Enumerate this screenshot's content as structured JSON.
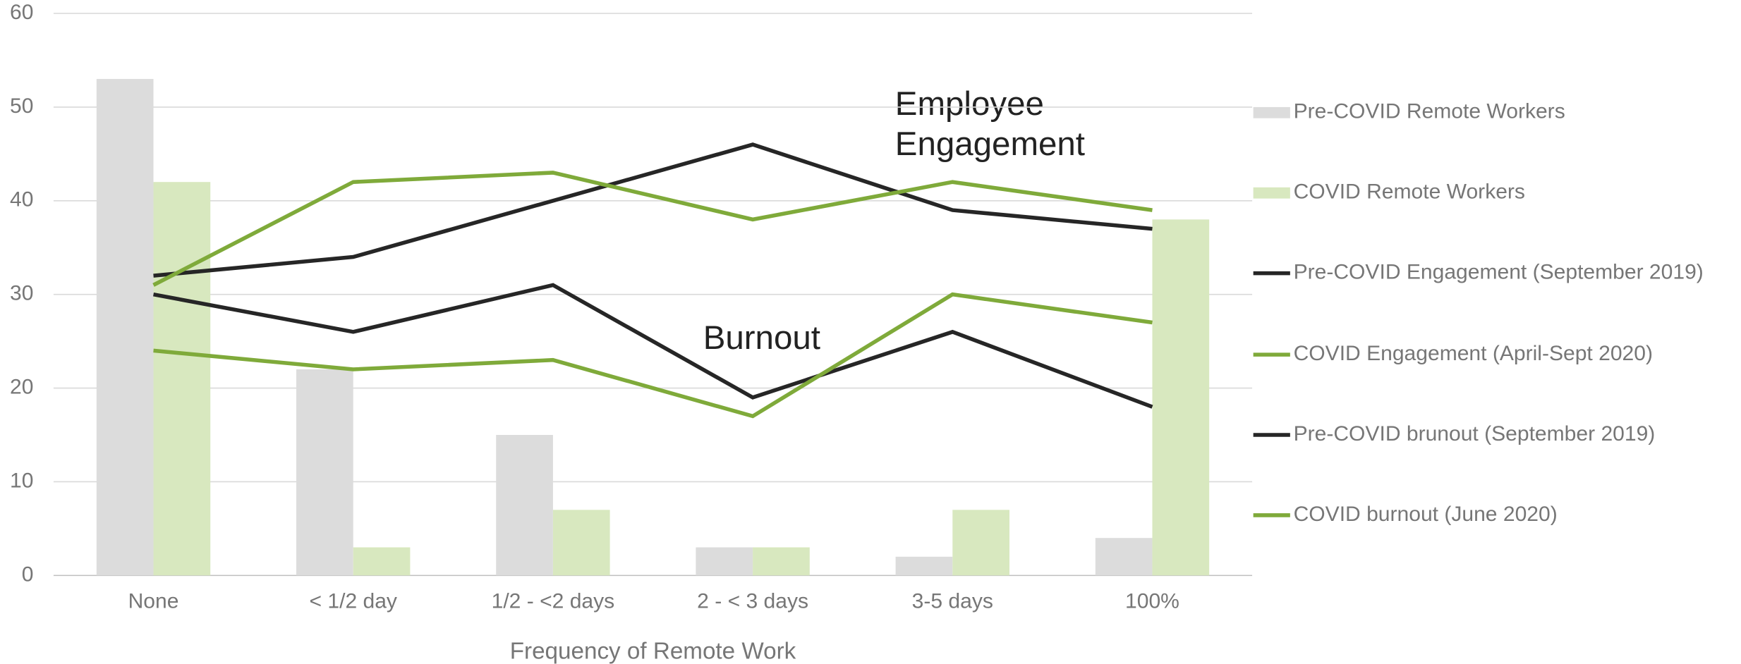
{
  "chart_data": {
    "type": "bar_line",
    "x_label": "Frequency of Remote Work",
    "categories": [
      "None",
      "< 1/2 day",
      "1/2 -  <2 days",
      "2 - < 3 days",
      "3-5 days",
      "100%"
    ],
    "series": [
      {
        "name": "Pre-COVID Remote Workers",
        "kind": "bar",
        "color": "#dcdcdc",
        "values": [
          53,
          22,
          15,
          3,
          2,
          4
        ]
      },
      {
        "name": "COVID Remote Workers",
        "kind": "bar",
        "color": "#d8e8bf",
        "values": [
          42,
          3,
          7,
          3,
          7,
          38
        ]
      },
      {
        "name": "Pre-COVID Engagement (September 2019)",
        "kind": "line",
        "color": "#262626",
        "values": [
          32,
          34,
          40,
          46,
          39,
          37
        ]
      },
      {
        "name": "COVID Engagement (April-Sept 2020)",
        "kind": "line",
        "color": "#7faa3a",
        "values": [
          31,
          42,
          43,
          38,
          42,
          39
        ]
      },
      {
        "name": "Pre-COVID brunout (September 2019)",
        "kind": "line",
        "color": "#262626",
        "values": [
          30,
          26,
          31,
          19,
          26,
          18
        ]
      },
      {
        "name": "COVID burnout (June 2020)",
        "kind": "line",
        "color": "#7faa3a",
        "values": [
          24,
          22,
          23,
          17,
          30,
          27
        ]
      }
    ],
    "annotations": [
      "Employee Engagement",
      "Burnout"
    ],
    "ylim": [
      0,
      60
    ],
    "yticks": [
      0,
      10,
      20,
      30,
      40,
      50,
      60
    ],
    "grid": true,
    "legend": "right"
  }
}
